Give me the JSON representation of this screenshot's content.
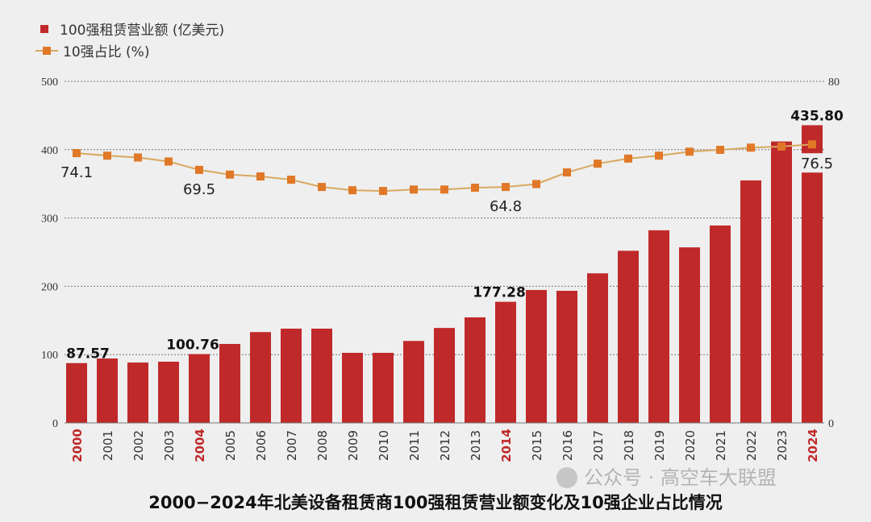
{
  "chart_data": {
    "type": "bar+line",
    "title": "2000−2024年北美设备租赁商100强租赁营业额变化及10强企业占比情况",
    "legend_position": "top-left",
    "grid": true,
    "categories": [
      "2000",
      "2001",
      "2002",
      "2003",
      "2004",
      "2005",
      "2006",
      "2007",
      "2008",
      "2009",
      "2010",
      "2011",
      "2012",
      "2013",
      "2014",
      "2015",
      "2016",
      "2017",
      "2018",
      "2019",
      "2020",
      "2021",
      "2022",
      "2023",
      "2024"
    ],
    "highlighted_categories": [
      "2000",
      "2004",
      "2014",
      "2024"
    ],
    "left_axis": {
      "ylim": [
        0,
        500
      ],
      "ticks": [
        "0",
        "100",
        "200",
        "300",
        "400",
        "500"
      ]
    },
    "right_axis": {
      "ticks": [
        "0",
        "80"
      ]
    },
    "series": [
      {
        "name": "100强租赁营业额 (亿美元)",
        "type": "bar",
        "color": "#c0292a",
        "values": [
          87.57,
          94.3,
          88.4,
          89.6,
          100.76,
          115.6,
          133,
          138,
          138,
          102.6,
          102.6,
          120,
          139,
          154.5,
          177.28,
          194.6,
          193.4,
          219,
          252,
          282,
          257,
          289,
          355,
          412,
          435.8
        ],
        "data_labels": [
          {
            "index": 0,
            "text": "87.57"
          },
          {
            "index": 4,
            "text": "100.76"
          },
          {
            "index": 14,
            "text": "177.28"
          },
          {
            "index": 24,
            "text": "435.80"
          }
        ]
      },
      {
        "name": "10强占比 (%)",
        "type": "line",
        "color": "#e07828",
        "line_color": "#d9a860",
        "values": [
          74.1,
          73.4,
          72.9,
          71.8,
          69.5,
          68.2,
          67.7,
          66.8,
          64.8,
          63.9,
          63.7,
          64.1,
          64.1,
          64.6,
          64.8,
          65.6,
          68.8,
          71.2,
          72.6,
          73.4,
          74.5,
          75.0,
          75.6,
          75.9,
          76.5
        ],
        "data_labels": [
          {
            "index": 0,
            "text": "74.1"
          },
          {
            "index": 4,
            "text": "69.5"
          },
          {
            "index": 14,
            "text": "64.8"
          },
          {
            "index": 24,
            "text": "76.5"
          }
        ]
      }
    ]
  },
  "watermark": "公众号 · 高空车大联盟"
}
